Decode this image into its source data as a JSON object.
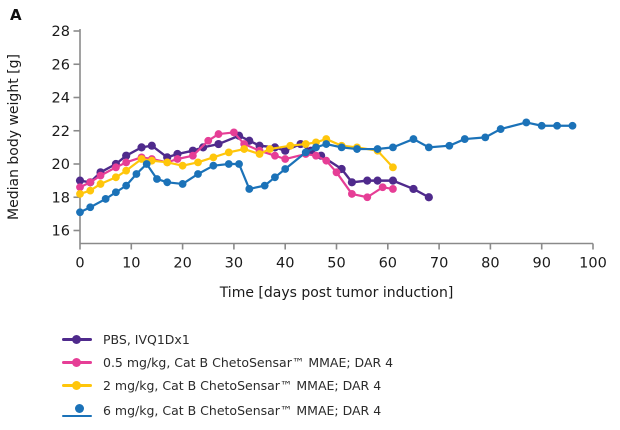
{
  "figure": {
    "panel_label": "A",
    "axis_color": "#8a8a8a",
    "text_color": "#1a1a1a"
  },
  "chart_data": {
    "type": "line",
    "title": "",
    "xlabel": "Time [days post tumor induction]",
    "ylabel": "Median body weight [g]",
    "xlim": [
      0,
      100
    ],
    "ylim": [
      16,
      28
    ],
    "x_ticks": [
      0,
      10,
      20,
      30,
      40,
      50,
      60,
      70,
      80,
      90,
      100
    ],
    "y_ticks": [
      16,
      18,
      20,
      22,
      24,
      26,
      28
    ],
    "grid": false,
    "legend_position": "bottom-left",
    "series": [
      {
        "name": "PBS, IVQ1Dx1",
        "color": "#4f2a8c",
        "marker": "circle",
        "x": [
          0,
          2,
          4,
          7,
          9,
          12,
          14,
          17,
          19,
          22,
          24,
          27,
          31,
          33,
          35,
          38,
          40,
          43,
          45,
          47,
          51,
          53,
          56,
          58,
          61,
          65,
          68
        ],
        "y": [
          19.0,
          18.9,
          19.5,
          20.0,
          20.5,
          21.0,
          21.1,
          20.4,
          20.6,
          20.8,
          21.0,
          21.2,
          21.7,
          21.4,
          21.1,
          21.0,
          20.8,
          21.2,
          20.8,
          20.5,
          19.7,
          18.9,
          19.0,
          19.0,
          19.0,
          18.5,
          18.0
        ]
      },
      {
        "name": "0.5 mg/kg, Cat B ChetoSensar™ MMAE; DAR 4",
        "color": "#e63e96",
        "marker": "circle",
        "x": [
          0,
          2,
          4,
          7,
          9,
          12,
          14,
          17,
          19,
          22,
          25,
          27,
          30,
          32,
          35,
          38,
          40,
          44,
          46,
          48,
          50,
          53,
          56,
          59,
          61
        ],
        "y": [
          18.6,
          18.9,
          19.3,
          19.8,
          20.1,
          20.4,
          20.3,
          20.1,
          20.3,
          20.5,
          21.4,
          21.8,
          21.9,
          21.2,
          20.8,
          20.5,
          20.3,
          20.6,
          20.5,
          20.2,
          19.5,
          18.2,
          18.0,
          18.6,
          18.5
        ]
      },
      {
        "name": "2 mg/kg, Cat B ChetoSensar™ MMAE; DAR 4",
        "color": "#ffc60b",
        "marker": "circle",
        "x": [
          0,
          2,
          4,
          7,
          9,
          12,
          14,
          17,
          20,
          23,
          26,
          29,
          32,
          35,
          37,
          41,
          44,
          46,
          48,
          51,
          54,
          58,
          61
        ],
        "y": [
          18.2,
          18.4,
          18.8,
          19.2,
          19.6,
          20.3,
          20.2,
          20.1,
          19.9,
          20.1,
          20.4,
          20.7,
          20.9,
          20.6,
          20.9,
          21.1,
          21.2,
          21.3,
          21.5,
          21.1,
          21.0,
          20.8,
          19.8
        ]
      },
      {
        "name": "6 mg/kg, Cat B ChetoSensar™ MMAE; DAR 4",
        "color": "#1b72b8",
        "marker": "circle",
        "x": [
          0,
          2,
          5,
          7,
          9,
          11,
          13,
          15,
          17,
          20,
          23,
          26,
          29,
          31,
          33,
          36,
          38,
          40,
          44,
          46,
          48,
          51,
          54,
          58,
          61,
          65,
          68,
          72,
          75,
          79,
          82,
          87,
          90,
          93,
          96
        ],
        "y": [
          17.1,
          17.4,
          17.9,
          18.3,
          18.7,
          19.4,
          20.0,
          19.1,
          18.9,
          18.8,
          19.4,
          19.9,
          20.0,
          20.0,
          18.5,
          18.7,
          19.2,
          19.7,
          20.7,
          21.0,
          21.2,
          21.0,
          20.9,
          20.9,
          21.0,
          21.5,
          21.0,
          21.1,
          21.5,
          21.6,
          22.1,
          22.5,
          22.3,
          22.3,
          22.3
        ]
      }
    ]
  }
}
